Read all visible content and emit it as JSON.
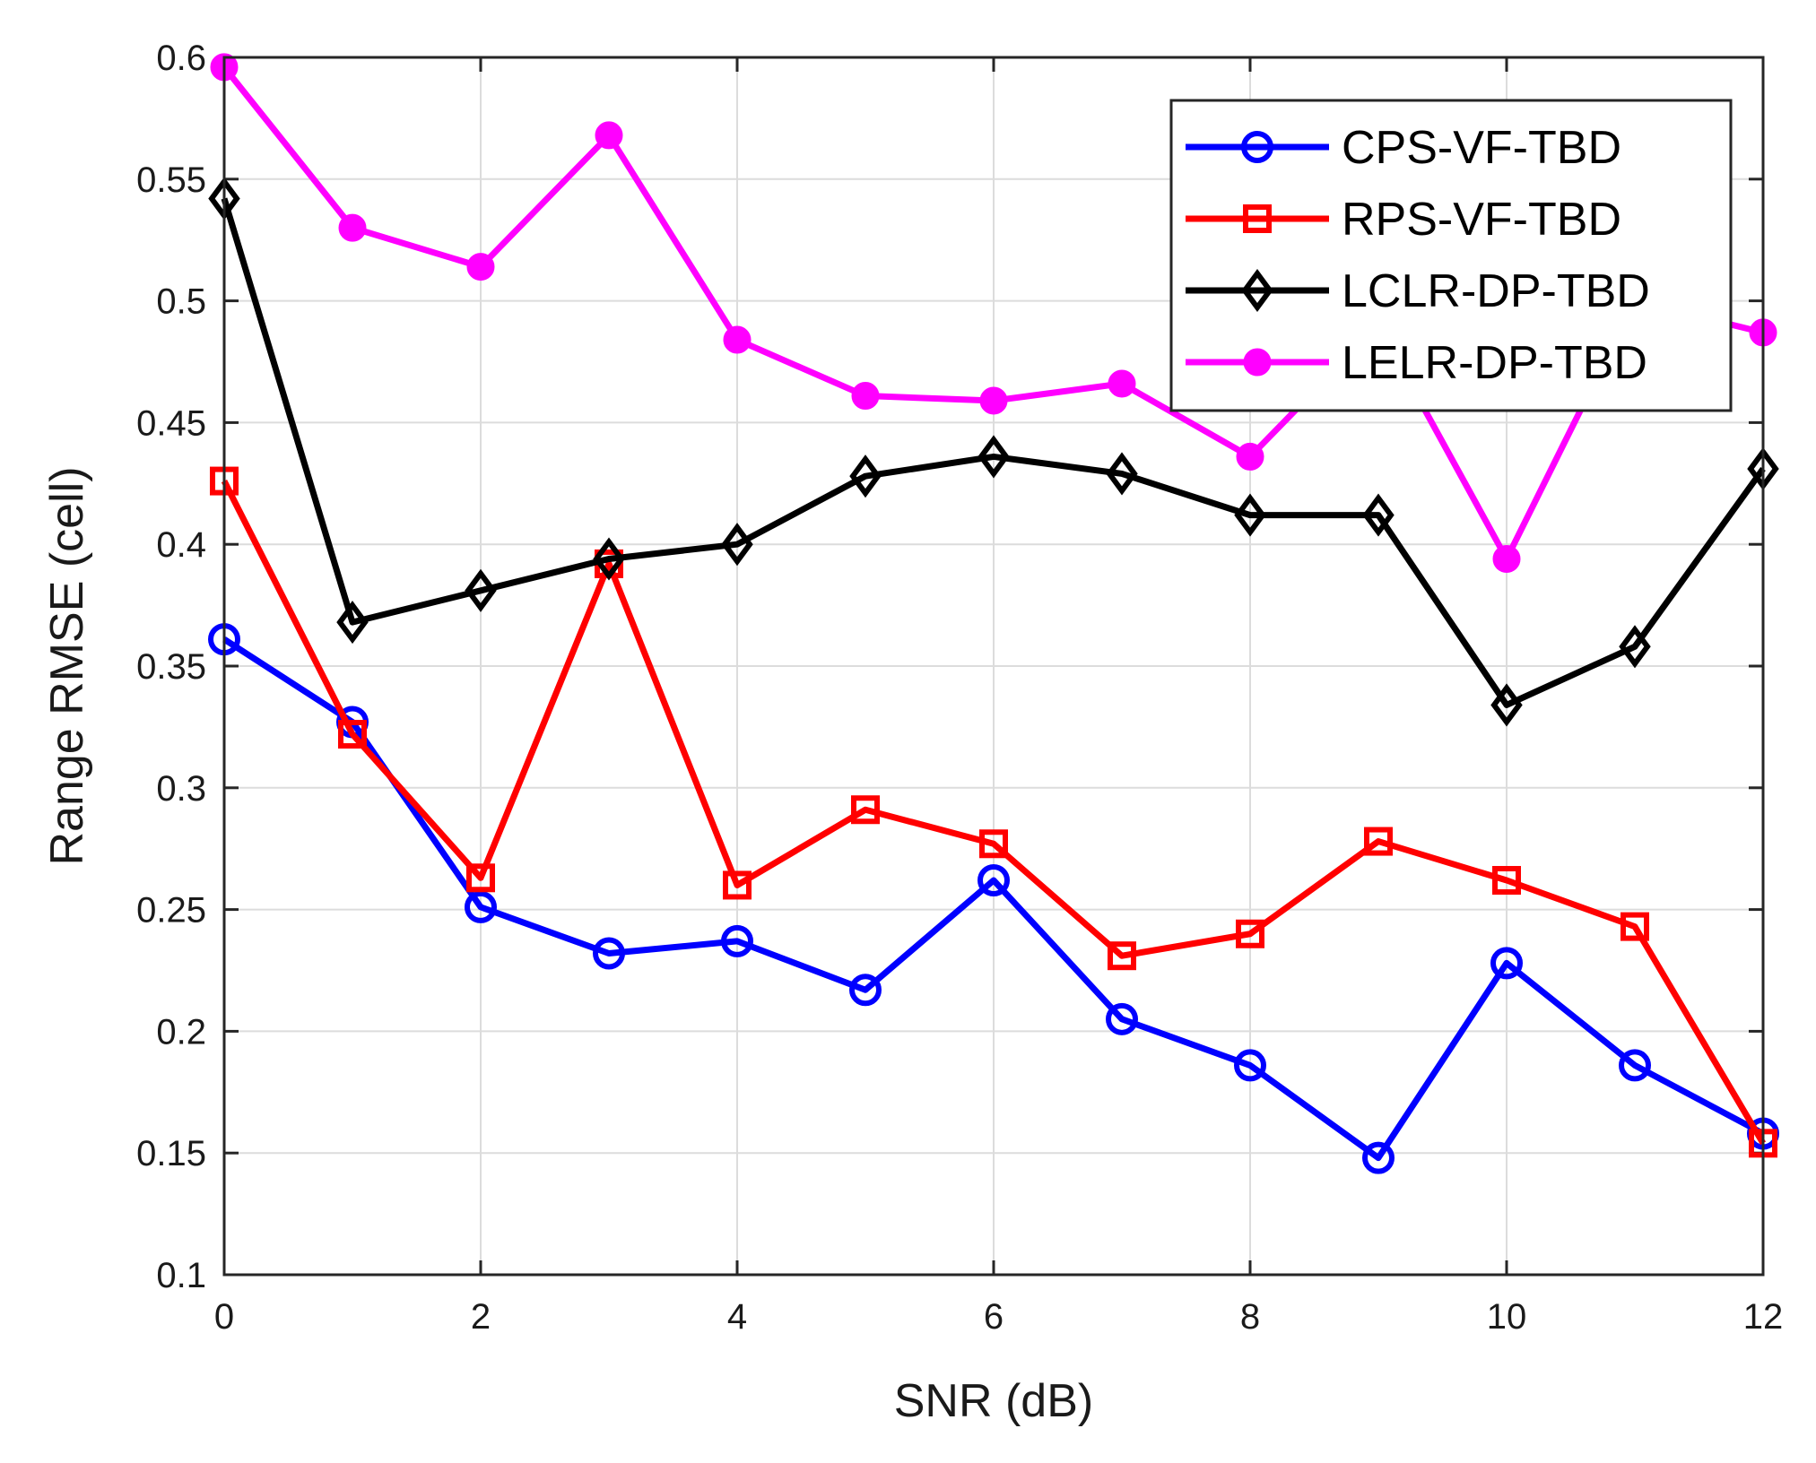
{
  "chart_data": {
    "type": "line",
    "title": "",
    "xlabel": "SNR (dB)",
    "ylabel": "Range RMSE (cell)",
    "xlim": [
      0,
      12
    ],
    "ylim": [
      0.1,
      0.6
    ],
    "xticks": [
      0,
      2,
      4,
      6,
      8,
      10,
      12
    ],
    "yticks": [
      0.1,
      0.15,
      0.2,
      0.25,
      0.3,
      0.35,
      0.4,
      0.45,
      0.5,
      0.55,
      0.6
    ],
    "xtick_labels": [
      "0",
      "2",
      "4",
      "6",
      "8",
      "10",
      "12"
    ],
    "ytick_labels": [
      "0.1",
      "0.15",
      "0.2",
      "0.25",
      "0.3",
      "0.35",
      "0.4",
      "0.45",
      "0.5",
      "0.55",
      "0.6"
    ],
    "grid": true,
    "legend_position": "top-right",
    "x": [
      0,
      1,
      2,
      3,
      4,
      5,
      6,
      7,
      8,
      9,
      10,
      11,
      12
    ],
    "series": [
      {
        "name": "CPS-VF-TBD",
        "color": "#0000ff",
        "marker": "circle-open",
        "values": [
          0.361,
          0.327,
          0.251,
          0.232,
          0.237,
          0.217,
          0.262,
          0.205,
          0.186,
          0.148,
          0.228,
          0.186,
          0.158
        ]
      },
      {
        "name": "RPS-VF-TBD",
        "color": "#ff0000",
        "marker": "square-open",
        "values": [
          0.426,
          0.322,
          0.263,
          0.392,
          0.26,
          0.291,
          0.277,
          0.231,
          0.24,
          0.278,
          0.262,
          0.243,
          0.154
        ]
      },
      {
        "name": "LCLR-DP-TBD",
        "color": "#000000",
        "marker": "diamond-open",
        "values": [
          0.542,
          0.368,
          0.381,
          0.394,
          0.4,
          0.428,
          0.436,
          0.429,
          0.412,
          0.412,
          0.334,
          0.358,
          0.431
        ]
      },
      {
        "name": "LELR-DP-TBD",
        "color": "#ff00ff",
        "marker": "circle-filled",
        "values": [
          0.596,
          0.53,
          0.514,
          0.568,
          0.484,
          0.461,
          0.459,
          0.466,
          0.436,
          0.49,
          0.394,
          0.5,
          0.487
        ]
      }
    ]
  }
}
